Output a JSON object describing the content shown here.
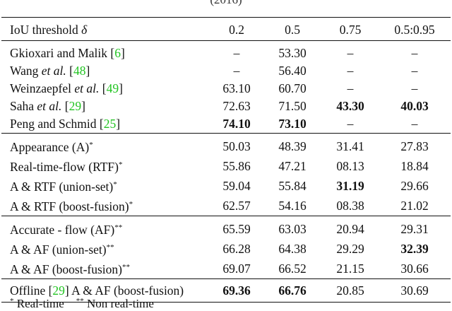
{
  "caption_fragment": "(2016)",
  "header": [
    "IoU threshold δ",
    "0.2",
    "0.5",
    "0.75",
    "0.5:0.95"
  ],
  "groups": [
    [
      {
        "name": "Gkioxari and Malik",
        "ref": "6",
        "vals": [
          "–",
          "53.30",
          "–",
          "–"
        ],
        "bold": []
      },
      {
        "name": "Wang et al.",
        "ref": "48",
        "vals": [
          "–",
          "56.40",
          "–",
          "–"
        ],
        "bold": []
      },
      {
        "name": "Weinzaepfel et al.",
        "ref": "49",
        "vals": [
          "63.10",
          "60.70",
          "–",
          "–"
        ],
        "bold": []
      },
      {
        "name": "Saha  et al.",
        "ref": "29",
        "vals": [
          "72.63",
          "71.50",
          "43.30",
          "40.03"
        ],
        "bold": [
          2,
          3
        ]
      },
      {
        "name": "Peng and Schmid",
        "ref": "25",
        "vals": [
          "74.10",
          "73.10",
          "–",
          "–"
        ],
        "bold": [
          0,
          1
        ]
      }
    ],
    [
      {
        "name": "Appearance (A)",
        "mark": "*",
        "vals": [
          "50.03",
          "48.39",
          "31.41",
          "27.83"
        ],
        "bold": []
      },
      {
        "name": "Real-time-flow (RTF)",
        "mark": "*",
        "vals": [
          "55.86",
          "47.21",
          "08.13",
          "18.84"
        ],
        "bold": []
      },
      {
        "name": "A & RTF (union-set)",
        "mark": "*",
        "vals": [
          "59.04",
          "55.84",
          "31.19",
          "29.66"
        ],
        "bold": [
          2
        ]
      },
      {
        "name": "A & RTF (boost-fusion)",
        "mark": "*",
        "vals": [
          "62.57",
          "54.16",
          "08.38",
          "21.02"
        ],
        "bold": []
      }
    ],
    [
      {
        "name": "Accurate - flow (AF)",
        "mark": "**",
        "vals": [
          "65.59",
          "63.03",
          "20.94",
          "29.31"
        ],
        "bold": []
      },
      {
        "name": "A & AF (union-set)",
        "mark": "**",
        "vals": [
          "66.28",
          "64.38",
          "29.29",
          "32.39"
        ],
        "bold": [
          3
        ]
      },
      {
        "name": "A & AF (boost-fusion)",
        "mark": "**",
        "vals": [
          "69.07",
          "66.52",
          "21.15",
          "30.66"
        ],
        "bold": []
      }
    ],
    [
      {
        "name": "Offline",
        "ref": "29",
        "suffix": " A & AF (boost-fusion)",
        "vals": [
          "69.36",
          "66.76",
          "20.85",
          "30.69"
        ],
        "bold": [
          0,
          1
        ]
      }
    ]
  ],
  "footnote": {
    "m1": "*",
    "t1": " Real-time",
    "m2": "**",
    "t2": " Non real-time"
  }
}
